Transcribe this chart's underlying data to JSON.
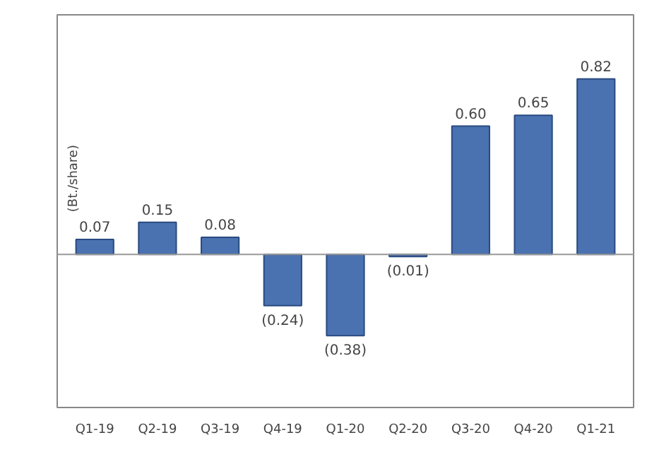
{
  "chart_data": {
    "type": "bar",
    "ylabel": "(Bt./share)",
    "categories": [
      "Q1-19",
      "Q2-19",
      "Q3-19",
      "Q4-19",
      "Q1-20",
      "Q2-20",
      "Q3-20",
      "Q4-20",
      "Q1-21"
    ],
    "values": [
      0.07,
      0.15,
      0.08,
      -0.24,
      -0.38,
      -0.01,
      0.6,
      0.65,
      0.82
    ],
    "value_labels": [
      "0.07",
      "0.15",
      "0.08",
      "(0.24)",
      "(0.38)",
      "(0.01)",
      "0.60",
      "0.65",
      "0.82"
    ],
    "color": "#4a72b0",
    "grid": false
  }
}
